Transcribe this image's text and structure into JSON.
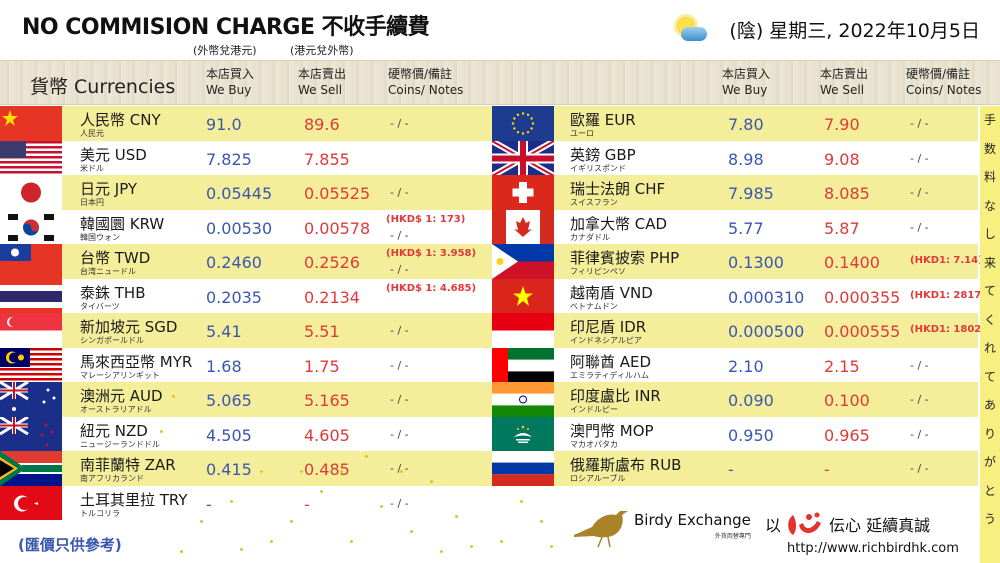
{
  "header": {
    "title": "NO COMMISION CHARGE 不收手續費",
    "sub_buy": "(外幣兌港元)",
    "sub_sell": "(港元兌外幣)",
    "weather_icon": "sun-behind-cloud-icon",
    "date": "(陰) 星期三, 2022年10月5日"
  },
  "columns": {
    "currencies": "貨幣 Currencies",
    "buy_zh": "本店買入",
    "buy_en": "We Buy",
    "sell_zh": "本店賣出",
    "sell_en": "We Sell",
    "coins_zh": "硬幣價/備註",
    "coins_en": "Coins/ Notes"
  },
  "colors": {
    "buy": "#3a57b0",
    "sell": "#e0393a",
    "row_highlight": "#f4ee9a",
    "header_band": "#e9e2d0"
  },
  "left_rates": [
    {
      "flag": "china-flag",
      "name": "人民幣 CNY",
      "kana": "人民元",
      "buy": "91.0",
      "sell": "89.6",
      "coins": "- / -",
      "note": ""
    },
    {
      "flag": "usa-flag",
      "name": "美元 USD",
      "kana": "米ドル",
      "buy": "7.825",
      "sell": "7.855",
      "coins": "",
      "note": ""
    },
    {
      "flag": "japan-flag",
      "name": "日元 JPY",
      "kana": "日本円",
      "buy": "0.05445",
      "sell": "0.05525",
      "coins": "- / -",
      "note": ""
    },
    {
      "flag": "korea-flag",
      "name": "韓國圜 KRW",
      "kana": "韓国ウォン",
      "buy": "0.00530",
      "sell": "0.00578",
      "coins": "- / -",
      "note": "(HKD$ 1: 173)"
    },
    {
      "flag": "taiwan-flag",
      "name": "台幣 TWD",
      "kana": "台湾ニュードル",
      "buy": "0.2460",
      "sell": "0.2526",
      "coins": "- / -",
      "note": "(HKD$ 1: 3.958)"
    },
    {
      "flag": "thailand-flag",
      "name": "泰銖 THB",
      "kana": "タイバーツ",
      "buy": "0.2035",
      "sell": "0.2134",
      "coins": "",
      "note": "(HKD$ 1: 4.685)"
    },
    {
      "flag": "singapore-flag",
      "name": "新加坡元 SGD",
      "kana": "シンガポールドル",
      "buy": "5.41",
      "sell": "5.51",
      "coins": "- / -",
      "note": ""
    },
    {
      "flag": "malaysia-flag",
      "name": "馬來西亞幣 MYR",
      "kana": "マレーシアリンギット",
      "buy": "1.68",
      "sell": "1.75",
      "coins": "- / -",
      "note": ""
    },
    {
      "flag": "australia-flag",
      "name": "澳洲元 AUD",
      "kana": "オーストラリアドル",
      "buy": "5.065",
      "sell": "5.165",
      "coins": "- / -",
      "note": ""
    },
    {
      "flag": "new-zealand-flag",
      "name": "紐元 NZD",
      "kana": "ニュージーランドドル",
      "buy": "4.505",
      "sell": "4.605",
      "coins": "- / -",
      "note": ""
    },
    {
      "flag": "south-africa-flag",
      "name": "南菲蘭特 ZAR",
      "kana": "南アフリカランド",
      "buy": "0.415",
      "sell": "0.485",
      "coins": "- / -",
      "note": ""
    },
    {
      "flag": "turkey-flag",
      "name": "土耳其里拉 TRY",
      "kana": "トルコリラ",
      "buy": "-",
      "sell": "-",
      "coins": "- / -",
      "note": ""
    }
  ],
  "right_rates": [
    {
      "flag": "eu-flag",
      "name": "歐羅 EUR",
      "kana": "ユーロ",
      "buy": "7.80",
      "sell": "7.90",
      "coins": "- / -",
      "note": ""
    },
    {
      "flag": "uk-flag",
      "name": "英鎊 GBP",
      "kana": "イギリスポンド",
      "buy": "8.98",
      "sell": "9.08",
      "coins": "- / -",
      "note": ""
    },
    {
      "flag": "switzerland-flag",
      "name": "瑞士法朗 CHF",
      "kana": "スイスフラン",
      "buy": "7.985",
      "sell": "8.085",
      "coins": "- / -",
      "note": ""
    },
    {
      "flag": "canada-flag",
      "name": "加拿大幣 CAD",
      "kana": "カナダドル",
      "buy": "5.77",
      "sell": "5.87",
      "coins": "- / -",
      "note": ""
    },
    {
      "flag": "philippines-flag",
      "name": "菲律賓披索 PHP",
      "kana": "フィリピンペソ",
      "buy": "0.1300",
      "sell": "0.1400",
      "coins": "",
      "note": "(HKD1: 7.14)"
    },
    {
      "flag": "vietnam-flag",
      "name": "越南盾 VND",
      "kana": "ベトナムドン",
      "buy": "0.000310",
      "sell": "0.000355",
      "coins": "",
      "note": "(HKD1: 2817)"
    },
    {
      "flag": "indonesia-flag",
      "name": "印尼盾 IDR",
      "kana": "インドネシアルピア",
      "buy": "0.000500",
      "sell": "0.000555",
      "coins": "",
      "note": "(HKD1: 1802)"
    },
    {
      "flag": "uae-flag",
      "name": "阿聯酋 AED",
      "kana": "エミラティディルハム",
      "buy": "2.10",
      "sell": "2.15",
      "coins": "- / -",
      "note": ""
    },
    {
      "flag": "india-flag",
      "name": "印度盧比 INR",
      "kana": "インドルピー",
      "buy": "0.090",
      "sell": "0.100",
      "coins": "- / -",
      "note": ""
    },
    {
      "flag": "macau-flag",
      "name": "澳門幣 MOP",
      "kana": "マカオパタカ",
      "buy": "0.950",
      "sell": "0.965",
      "coins": "- / -",
      "note": ""
    },
    {
      "flag": "russia-flag",
      "name": "俄羅斯盧布 RUB",
      "kana": "ロシアルーブル",
      "buy": "-",
      "sell": "-",
      "coins": "- / -",
      "note": ""
    }
  ],
  "vertical_message": [
    "手",
    "数",
    "料",
    "な",
    "し",
    "来",
    "て",
    "く",
    "れ",
    "て",
    "あ",
    "り",
    "が",
    "と",
    "う"
  ],
  "footer": {
    "disclaimer": "(匯價只供參考)",
    "brand_name": "Birdy Exchange",
    "brand_sub": "外貨両替專門",
    "slogan_prefix": "以",
    "slogan_suffix": "伝心 延續真誠",
    "url": "http://www.richbirdhk.com"
  }
}
